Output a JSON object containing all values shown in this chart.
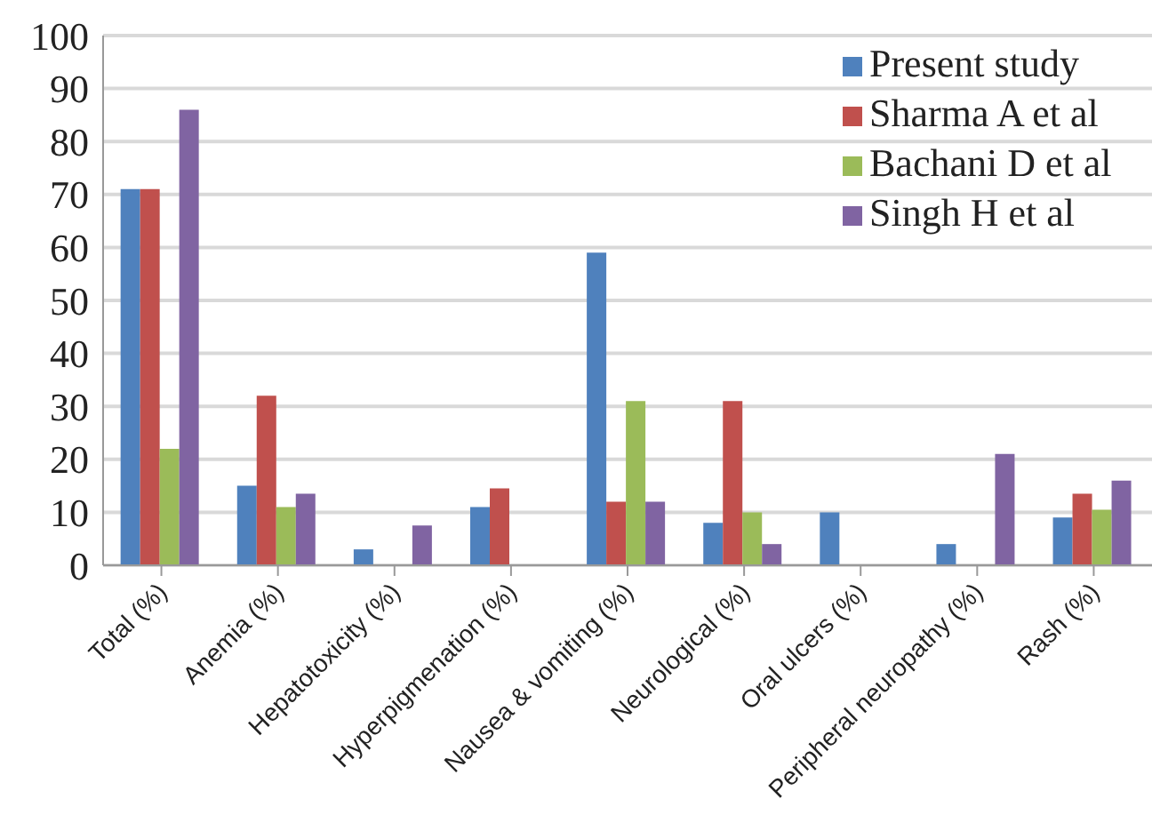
{
  "chart_data": {
    "type": "bar",
    "categories": [
      "Total (%)",
      "Anemia (%)",
      "Hepatotoxicity (%)",
      "Hyperpigmenation (%)",
      "Nausea & vomiting (%)",
      "Neurological (%)",
      "Oral ulcers (%)",
      "Peripheral neuropathy (%)",
      "Rash (%)"
    ],
    "series": [
      {
        "name": "Present study",
        "color": "#4f81bd",
        "values": [
          71,
          15,
          3,
          11,
          59,
          8,
          10,
          4,
          9
        ]
      },
      {
        "name": "Sharma A et al",
        "color": "#c0504d",
        "values": [
          71,
          32,
          0,
          14.5,
          12,
          31,
          0,
          0,
          13.5
        ]
      },
      {
        "name": "Bachani D et al",
        "color": "#9bbb59",
        "values": [
          22,
          11,
          0,
          0,
          31,
          10,
          0,
          0,
          10.5
        ]
      },
      {
        "name": "Singh H et al",
        "color": "#8064a2",
        "values": [
          86,
          13.5,
          7.5,
          0,
          12,
          4,
          0,
          21,
          16
        ]
      }
    ],
    "ylim": [
      0,
      100
    ],
    "yticks": [
      0,
      10,
      20,
      30,
      40,
      50,
      60,
      70,
      80,
      90,
      100
    ],
    "grid": "y",
    "legend": "top right"
  }
}
